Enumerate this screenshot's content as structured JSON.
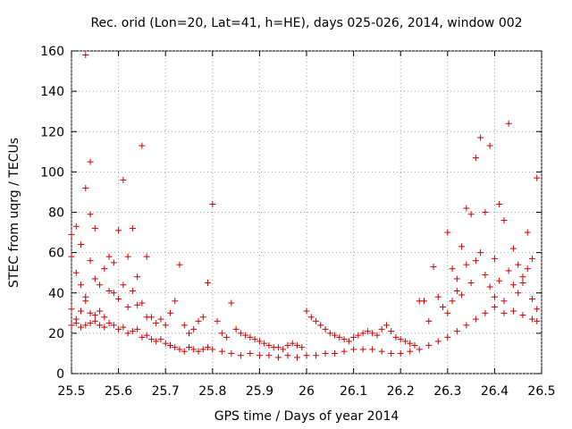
{
  "chart_data": {
    "type": "scatter",
    "title": "Rec. orid (Lon=20, Lat=41, h=HE), days 025-026, 2014, window 002",
    "xlabel": "GPS time / Days of year 2014",
    "ylabel": "STEC from uqrg / TECUs",
    "xlim": [
      25.5,
      26.5
    ],
    "ylim": [
      0,
      160
    ],
    "xticks": [
      "25.5",
      "25.6",
      "25.7",
      "25.8",
      "25.9",
      "26",
      "26.1",
      "26.2",
      "26.3",
      "26.4",
      "26.5"
    ],
    "yticks": [
      "0",
      "20",
      "40",
      "60",
      "80",
      "100",
      "120",
      "140",
      "160"
    ],
    "marker": "+",
    "color": "#cc0000",
    "series": [
      {
        "name": "STEC",
        "points": [
          [
            25.5,
            69
          ],
          [
            25.5,
            58
          ],
          [
            25.51,
            73
          ],
          [
            25.52,
            64
          ],
          [
            25.53,
            158
          ],
          [
            25.53,
            92
          ],
          [
            25.54,
            105
          ],
          [
            25.54,
            79
          ],
          [
            25.55,
            72
          ],
          [
            25.51,
            50
          ],
          [
            25.52,
            44
          ],
          [
            25.53,
            38
          ],
          [
            25.54,
            56
          ],
          [
            25.55,
            47
          ],
          [
            25.56,
            44
          ],
          [
            25.57,
            52
          ],
          [
            25.58,
            58
          ],
          [
            25.59,
            55
          ],
          [
            25.6,
            71
          ],
          [
            25.61,
            96
          ],
          [
            25.62,
            58
          ],
          [
            25.63,
            72
          ],
          [
            25.64,
            48
          ],
          [
            25.65,
            113
          ],
          [
            25.66,
            58
          ],
          [
            25.5,
            32
          ],
          [
            25.51,
            27
          ],
          [
            25.52,
            31
          ],
          [
            25.53,
            36
          ],
          [
            25.54,
            30
          ],
          [
            25.55,
            29
          ],
          [
            25.56,
            31
          ],
          [
            25.57,
            28
          ],
          [
            25.58,
            41
          ],
          [
            25.59,
            40
          ],
          [
            25.6,
            37
          ],
          [
            25.61,
            44
          ],
          [
            25.62,
            33
          ],
          [
            25.63,
            41
          ],
          [
            25.64,
            34
          ],
          [
            25.65,
            35
          ],
          [
            25.66,
            28
          ],
          [
            25.5,
            24
          ],
          [
            25.51,
            25
          ],
          [
            25.52,
            23
          ],
          [
            25.53,
            24
          ],
          [
            25.54,
            25
          ],
          [
            25.55,
            26
          ],
          [
            25.56,
            24
          ],
          [
            25.57,
            23
          ],
          [
            25.58,
            25
          ],
          [
            25.59,
            24
          ],
          [
            25.6,
            22
          ],
          [
            25.61,
            23
          ],
          [
            25.62,
            20
          ],
          [
            25.63,
            21
          ],
          [
            25.64,
            22
          ],
          [
            25.65,
            18
          ],
          [
            25.66,
            19
          ],
          [
            25.67,
            17
          ],
          [
            25.68,
            16
          ],
          [
            25.69,
            17
          ],
          [
            25.7,
            15
          ],
          [
            25.71,
            14
          ],
          [
            25.72,
            13
          ],
          [
            25.73,
            12
          ],
          [
            25.74,
            11
          ],
          [
            25.75,
            13
          ],
          [
            25.76,
            12
          ],
          [
            25.77,
            11
          ],
          [
            25.78,
            12
          ],
          [
            25.79,
            13
          ],
          [
            25.8,
            12
          ],
          [
            25.82,
            11
          ],
          [
            25.84,
            10
          ],
          [
            25.86,
            9
          ],
          [
            25.88,
            10
          ],
          [
            25.9,
            9
          ],
          [
            25.92,
            9
          ],
          [
            25.94,
            8
          ],
          [
            25.96,
            9
          ],
          [
            25.98,
            8
          ],
          [
            26.0,
            9
          ],
          [
            26.02,
            9
          ],
          [
            26.04,
            10
          ],
          [
            26.06,
            10
          ],
          [
            26.08,
            11
          ],
          [
            26.1,
            12
          ],
          [
            26.12,
            12
          ],
          [
            26.14,
            12
          ],
          [
            26.16,
            11
          ],
          [
            26.18,
            10
          ],
          [
            26.2,
            10
          ],
          [
            26.22,
            11
          ],
          [
            26.24,
            12
          ],
          [
            26.26,
            14
          ],
          [
            26.28,
            16
          ],
          [
            26.3,
            18
          ],
          [
            26.32,
            21
          ],
          [
            26.34,
            24
          ],
          [
            26.36,
            27
          ],
          [
            26.38,
            30
          ],
          [
            26.4,
            33
          ],
          [
            26.42,
            30
          ],
          [
            26.44,
            31
          ],
          [
            26.46,
            29
          ],
          [
            26.48,
            27
          ],
          [
            26.49,
            26
          ],
          [
            25.67,
            28
          ],
          [
            25.68,
            25
          ],
          [
            25.69,
            27
          ],
          [
            25.7,
            24
          ],
          [
            25.71,
            30
          ],
          [
            25.72,
            36
          ],
          [
            25.73,
            54
          ],
          [
            25.74,
            24
          ],
          [
            25.75,
            20
          ],
          [
            25.76,
            22
          ],
          [
            25.77,
            26
          ],
          [
            25.78,
            28
          ],
          [
            25.79,
            45
          ],
          [
            25.8,
            84
          ],
          [
            25.81,
            26
          ],
          [
            25.82,
            20
          ],
          [
            25.83,
            18
          ],
          [
            25.84,
            35
          ],
          [
            25.85,
            22
          ],
          [
            25.86,
            20
          ],
          [
            25.87,
            19
          ],
          [
            25.88,
            18
          ],
          [
            25.89,
            17
          ],
          [
            25.9,
            16
          ],
          [
            25.91,
            15
          ],
          [
            25.92,
            14
          ],
          [
            25.93,
            13
          ],
          [
            25.94,
            13
          ],
          [
            25.95,
            12
          ],
          [
            25.96,
            14
          ],
          [
            25.97,
            15
          ],
          [
            25.98,
            14
          ],
          [
            25.99,
            13
          ],
          [
            26.0,
            31
          ],
          [
            26.01,
            28
          ],
          [
            26.02,
            26
          ],
          [
            26.03,
            24
          ],
          [
            26.04,
            22
          ],
          [
            26.05,
            20
          ],
          [
            26.06,
            19
          ],
          [
            26.07,
            18
          ],
          [
            26.08,
            17
          ],
          [
            26.09,
            16
          ],
          [
            26.1,
            18
          ],
          [
            26.11,
            19
          ],
          [
            26.12,
            20
          ],
          [
            26.13,
            21
          ],
          [
            26.14,
            20
          ],
          [
            26.15,
            19
          ],
          [
            26.16,
            22
          ],
          [
            26.17,
            24
          ],
          [
            26.18,
            21
          ],
          [
            26.19,
            18
          ],
          [
            26.2,
            17
          ],
          [
            26.21,
            16
          ],
          [
            26.22,
            15
          ],
          [
            26.23,
            14
          ],
          [
            26.24,
            36
          ],
          [
            26.25,
            36
          ],
          [
            26.26,
            26
          ],
          [
            26.27,
            53
          ],
          [
            26.28,
            38
          ],
          [
            26.29,
            33
          ],
          [
            26.3,
            70
          ],
          [
            26.31,
            52
          ],
          [
            26.32,
            41
          ],
          [
            26.33,
            63
          ],
          [
            26.34,
            82
          ],
          [
            26.35,
            79
          ],
          [
            26.36,
            107
          ],
          [
            26.37,
            117
          ],
          [
            26.38,
            80
          ],
          [
            26.39,
            113
          ],
          [
            26.4,
            57
          ],
          [
            26.41,
            84
          ],
          [
            26.42,
            76
          ],
          [
            26.43,
            124
          ],
          [
            26.44,
            62
          ],
          [
            26.45,
            54
          ],
          [
            26.46,
            48
          ],
          [
            26.47,
            70
          ],
          [
            26.48,
            37
          ],
          [
            26.49,
            97
          ],
          [
            26.3,
            30
          ],
          [
            26.31,
            36
          ],
          [
            26.32,
            47
          ],
          [
            26.33,
            39
          ],
          [
            26.34,
            54
          ],
          [
            26.35,
            45
          ],
          [
            26.36,
            56
          ],
          [
            26.37,
            60
          ],
          [
            26.38,
            49
          ],
          [
            26.39,
            43
          ],
          [
            26.4,
            38
          ],
          [
            26.41,
            46
          ],
          [
            26.42,
            36
          ],
          [
            26.43,
            51
          ],
          [
            26.44,
            44
          ],
          [
            26.45,
            40
          ],
          [
            26.46,
            45
          ],
          [
            26.47,
            52
          ],
          [
            26.48,
            57
          ],
          [
            26.49,
            32
          ]
        ]
      }
    ]
  }
}
